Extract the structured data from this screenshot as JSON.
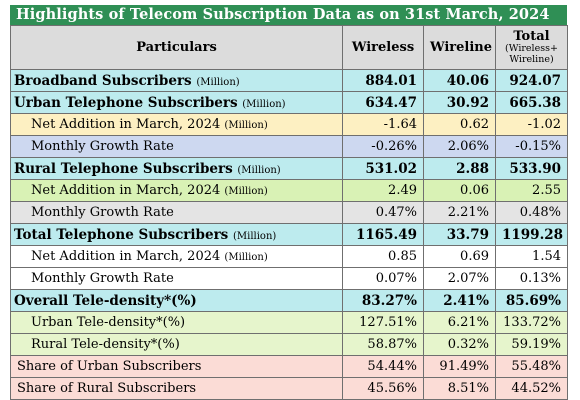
{
  "title": "Highlights of Telecom Subscription Data as on 31st March, 2024",
  "header": {
    "particulars": "Particulars",
    "wireless": "Wireless",
    "wireline": "Wireline",
    "total": "Total",
    "total_sub1": "(Wireless+",
    "total_sub2": "Wireline)"
  },
  "rows": [
    {
      "label": "Broadband Subscribers",
      "unit": "(Million)",
      "wireless": "884.01",
      "wireline": "40.06",
      "total": "924.07"
    },
    {
      "label": "Urban Telephone Subscribers",
      "unit": "(Million)",
      "wireless": "634.47",
      "wireline": "30.92",
      "total": "665.38"
    },
    {
      "label": "Net Addition in March, 2024",
      "unit": "(Million)",
      "wireless": "-1.64",
      "wireline": "0.62",
      "total": "-1.02"
    },
    {
      "label": "Monthly Growth Rate",
      "unit": "",
      "wireless": "-0.26%",
      "wireline": "2.06%",
      "total": "-0.15%"
    },
    {
      "label": "Rural Telephone Subscribers",
      "unit": "(Million)",
      "wireless": "531.02",
      "wireline": "2.88",
      "total": "533.90"
    },
    {
      "label": "Net Addition in March, 2024",
      "unit": "(Million)",
      "wireless": "2.49",
      "wireline": "0.06",
      "total": "2.55"
    },
    {
      "label": "Monthly Growth Rate",
      "unit": "",
      "wireless": "0.47%",
      "wireline": "2.21%",
      "total": "0.48%"
    },
    {
      "label": "Total Telephone Subscribers",
      "unit": "(Million)",
      "wireless": "1165.49",
      "wireline": "33.79",
      "total": "1199.28"
    },
    {
      "label": "Net Addition in March, 2024",
      "unit": "(Million)",
      "wireless": "0.85",
      "wireline": "0.69",
      "total": "1.54"
    },
    {
      "label": "Monthly Growth Rate",
      "unit": "",
      "wireless": "0.07%",
      "wireline": "2.07%",
      "total": "0.13%"
    },
    {
      "label": "Overall Tele-density*(%)",
      "unit": "",
      "wireless": "83.27%",
      "wireline": "2.41%",
      "total": "85.69%"
    },
    {
      "label": "Urban Tele-density*(%)",
      "unit": "",
      "wireless": "127.51%",
      "wireline": "6.21%",
      "total": "133.72%"
    },
    {
      "label": "Rural Tele-density*(%)",
      "unit": "",
      "wireless": "58.87%",
      "wireline": "0.32%",
      "total": "59.19%"
    },
    {
      "label": "Share of Urban Subscribers",
      "unit": "",
      "wireless": "54.44%",
      "wireline": "91.49%",
      "total": "55.48%"
    },
    {
      "label": "Share of Rural Subscribers",
      "unit": "",
      "wireless": "45.56%",
      "wireline": "8.51%",
      "total": "44.52%"
    }
  ],
  "colors": {
    "title_bg": "#2f8f55",
    "header_bg": "#dcdcdc",
    "cyan": "#bdebee",
    "yellow": "#fdf0c2",
    "blue": "#cdd8f0",
    "green": "#d9f2b5",
    "grey": "#e4e4e4",
    "light_green": "#e6f5cc",
    "pink": "#fbdcd6"
  }
}
